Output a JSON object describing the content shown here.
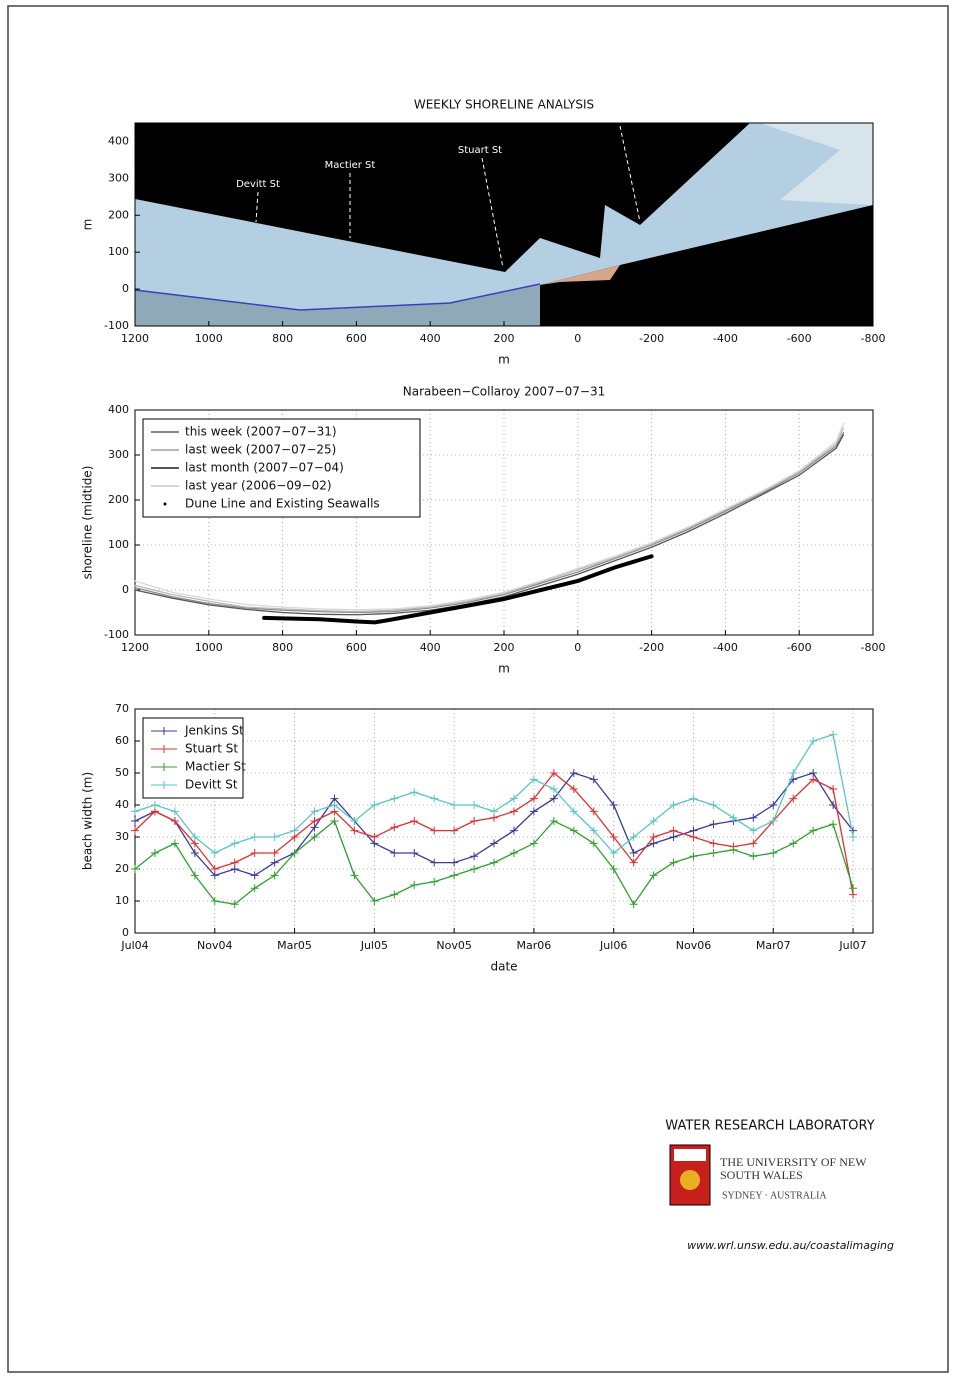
{
  "chart_data": [
    {
      "type": "image",
      "title": "WEEKLY SHORELINE ANALYSIS",
      "xlabel": "m",
      "ylabel": "m",
      "xlim": [
        1200,
        -800
      ],
      "xticks": [
        1200,
        1000,
        800,
        600,
        400,
        200,
        0,
        -200,
        -400,
        -600,
        -800
      ],
      "ylim": [
        -100,
        450
      ],
      "yticks": [
        -100,
        0,
        100,
        200,
        300,
        400
      ],
      "grid": false,
      "annotations": [
        "Devitt St",
        "Mactier St",
        "Stuart St"
      ]
    },
    {
      "type": "line",
      "title": "Narabeen−Collaroy  2007−07−31",
      "xlabel": "m",
      "ylabel": "shoreline (midtide)",
      "xlim": [
        1200,
        -800
      ],
      "xticks": [
        1200,
        1000,
        800,
        600,
        400,
        200,
        0,
        -200,
        -400,
        -600,
        -800
      ],
      "ylim": [
        -100,
        400
      ],
      "yticks": [
        -100,
        0,
        100,
        200,
        300,
        400
      ],
      "grid": true,
      "legend": "upper left",
      "series": [
        {
          "name": "this week (2007−07−31)",
          "color": "#888888",
          "x": [
            1200,
            1100,
            1000,
            900,
            800,
            700,
            600,
            500,
            400,
            300,
            200,
            100,
            0,
            -100,
            -200,
            -300,
            -400,
            -500,
            -600,
            -700,
            -720
          ],
          "values": [
            5,
            -15,
            -30,
            -40,
            -45,
            -48,
            -50,
            -48,
            -40,
            -28,
            -10,
            15,
            40,
            70,
            100,
            135,
            175,
            215,
            260,
            320,
            350
          ]
        },
        {
          "name": "last week (2007−07−25)",
          "color": "#b8b8b8",
          "x": [
            1200,
            1100,
            1000,
            900,
            800,
            700,
            600,
            500,
            400,
            300,
            200,
            100,
            0,
            -100,
            -200,
            -300,
            -400,
            -500,
            -600,
            -700,
            -720
          ],
          "values": [
            10,
            -10,
            -25,
            -38,
            -42,
            -46,
            -48,
            -45,
            -38,
            -25,
            -8,
            18,
            45,
            72,
            102,
            138,
            178,
            218,
            262,
            325,
            360
          ]
        },
        {
          "name": "last month (2007−07−04)",
          "color": "#555555",
          "x": [
            1200,
            1100,
            1000,
            900,
            800,
            700,
            600,
            500,
            400,
            300,
            200,
            100,
            0,
            -100,
            -200,
            -300,
            -400,
            -500,
            -600,
            -700,
            -720
          ],
          "values": [
            0,
            -18,
            -33,
            -43,
            -50,
            -54,
            -55,
            -52,
            -45,
            -32,
            -15,
            10,
            35,
            65,
            95,
            130,
            170,
            212,
            255,
            315,
            345
          ]
        },
        {
          "name": "last year (2006−09−02)",
          "color": "#d8d8d8",
          "x": [
            1200,
            1100,
            1000,
            900,
            800,
            700,
            600,
            500,
            400,
            300,
            200,
            100,
            0,
            -100,
            -200,
            -300,
            -400,
            -500,
            -600,
            -700,
            -720
          ],
          "values": [
            20,
            -5,
            -20,
            -32,
            -38,
            -42,
            -44,
            -42,
            -35,
            -22,
            -5,
            20,
            48,
            75,
            105,
            140,
            180,
            220,
            265,
            330,
            370
          ]
        },
        {
          "name": "Dune Line and Existing Seawalls",
          "color": "#000000",
          "style": "dots",
          "x": [
            850,
            800,
            700,
            600,
            550,
            500,
            400,
            300,
            200,
            100,
            0,
            -100,
            -200
          ],
          "values": [
            -62,
            -63,
            -65,
            -70,
            -72,
            -65,
            -50,
            -35,
            -20,
            0,
            20,
            50,
            75
          ]
        }
      ]
    },
    {
      "type": "line",
      "xlabel": "date",
      "ylabel": "beach width (m)",
      "xlim": [
        "2004-07",
        "2007-08"
      ],
      "xticks": [
        {
          "value": "2004-07",
          "label": "Jul04"
        },
        {
          "value": "2004-11",
          "label": "Nov04"
        },
        {
          "value": "2005-03",
          "label": "Mar05"
        },
        {
          "value": "2005-07",
          "label": "Jul05"
        },
        {
          "value": "2005-11",
          "label": "Nov05"
        },
        {
          "value": "2006-03",
          "label": "Mar06"
        },
        {
          "value": "2006-07",
          "label": "Jul06"
        },
        {
          "value": "2006-11",
          "label": "Nov06"
        },
        {
          "value": "2007-03",
          "label": "Mar07"
        },
        {
          "value": "2007-07",
          "label": "Jul07"
        }
      ],
      "ylim": [
        0,
        70
      ],
      "yticks": [
        0,
        10,
        20,
        30,
        40,
        50,
        60,
        70
      ],
      "grid": true,
      "legend": "upper left",
      "marker": "+",
      "x": [
        "2004-07",
        "2004-08",
        "2004-09",
        "2004-10",
        "2004-11",
        "2004-12",
        "2005-01",
        "2005-02",
        "2005-03",
        "2005-04",
        "2005-05",
        "2005-06",
        "2005-07",
        "2005-08",
        "2005-09",
        "2005-10",
        "2005-11",
        "2005-12",
        "2006-01",
        "2006-02",
        "2006-03",
        "2006-04",
        "2006-05",
        "2006-06",
        "2006-07",
        "2006-08",
        "2006-09",
        "2006-10",
        "2006-11",
        "2006-12",
        "2007-01",
        "2007-02",
        "2007-03",
        "2007-04",
        "2007-05",
        "2007-06",
        "2007-07"
      ],
      "series": [
        {
          "name": "Jenkins St",
          "color": "#3a3a9a",
          "values": [
            35,
            38,
            35,
            25,
            18,
            20,
            18,
            22,
            25,
            33,
            42,
            35,
            28,
            25,
            25,
            22,
            22,
            24,
            28,
            32,
            38,
            42,
            50,
            48,
            40,
            25,
            28,
            30,
            32,
            34,
            35,
            36,
            40,
            48,
            50,
            40,
            32
          ]
        },
        {
          "name": "Stuart St",
          "color": "#e03030",
          "values": [
            32,
            38,
            35,
            28,
            20,
            22,
            25,
            25,
            30,
            35,
            38,
            32,
            30,
            33,
            35,
            32,
            32,
            35,
            36,
            38,
            42,
            50,
            45,
            38,
            30,
            22,
            30,
            32,
            30,
            28,
            27,
            28,
            35,
            42,
            48,
            45,
            12
          ]
        },
        {
          "name": "Mactier St",
          "color": "#30a030",
          "values": [
            20,
            25,
            28,
            18,
            10,
            9,
            14,
            18,
            25,
            30,
            35,
            18,
            10,
            12,
            15,
            16,
            18,
            20,
            22,
            25,
            28,
            35,
            32,
            28,
            20,
            9,
            18,
            22,
            24,
            25,
            26,
            24,
            25,
            28,
            32,
            34,
            14
          ]
        },
        {
          "name": "Devitt St",
          "color": "#5cc4c4",
          "values": [
            38,
            40,
            38,
            30,
            25,
            28,
            30,
            30,
            32,
            38,
            40,
            35,
            40,
            42,
            44,
            42,
            40,
            40,
            38,
            42,
            48,
            45,
            38,
            32,
            25,
            30,
            35,
            40,
            42,
            40,
            36,
            32,
            35,
            50,
            60,
            62,
            30
          ]
        }
      ]
    }
  ],
  "footer": {
    "lab": "WATER RESEARCH LABORATORY",
    "university": "THE UNIVERSITY OF NEW SOUTH WALES",
    "location": "SYDNEY · AUSTRALIA",
    "url": "www.wrl.unsw.edu.au/coastalimaging"
  }
}
